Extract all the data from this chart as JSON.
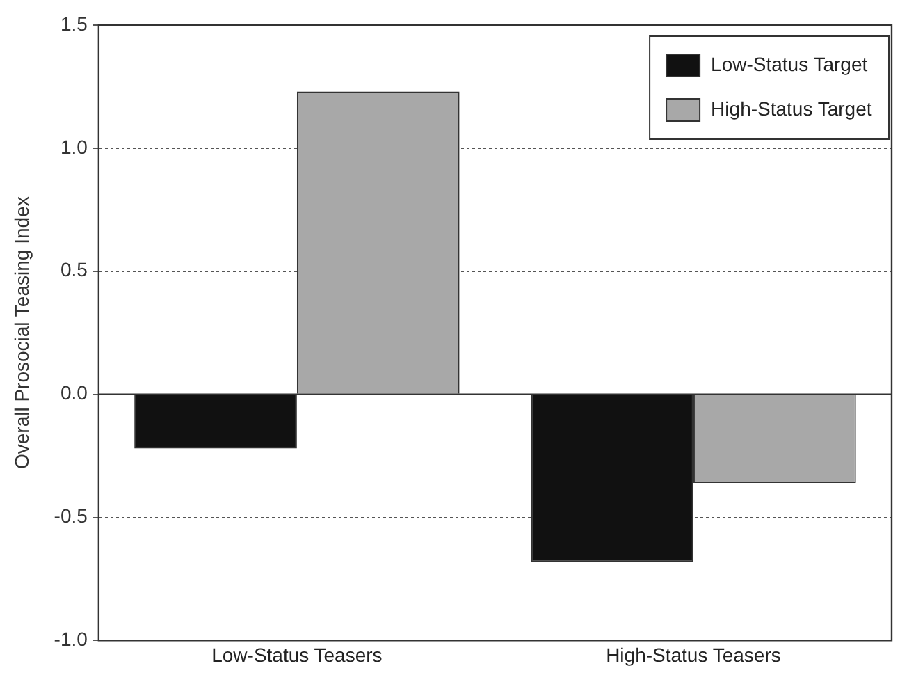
{
  "chart_data": {
    "type": "bar",
    "ylabel": "Overall Prosocial Teasing Index",
    "categories": [
      "Low-Status Teasers",
      "High-Status Teasers"
    ],
    "series": [
      {
        "name": "Low-Status Target",
        "color": "#111111",
        "values": [
          -0.22,
          -0.68
        ]
      },
      {
        "name": "High-Status Target",
        "color": "#a8a8a8",
        "values": [
          1.23,
          -0.36
        ]
      }
    ],
    "ylim": [
      -1.0,
      1.5
    ],
    "yticks": [
      {
        "value": -1,
        "label": "-1.0"
      },
      {
        "value": -0.5,
        "label": "-0.5"
      },
      {
        "value": 0,
        "label": "0.0"
      },
      {
        "value": 0.5,
        "label": "0.5"
      },
      {
        "value": 1,
        "label": "1.0"
      },
      {
        "value": 1.5,
        "label": "1.5"
      }
    ],
    "grid": "y",
    "legend": "top right"
  }
}
